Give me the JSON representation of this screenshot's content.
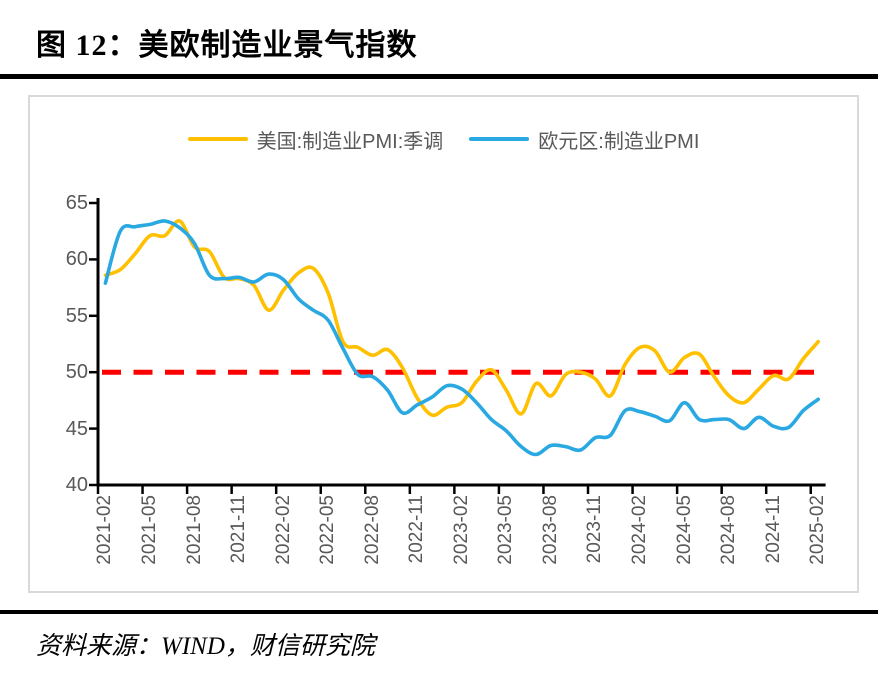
{
  "header": {
    "title": "图 12：美欧制造业景气指数"
  },
  "footer": {
    "source": "资料来源：WIND，财信研究院"
  },
  "colors": {
    "us_line": "#FFC000",
    "eu_line": "#29A8E1",
    "reference": "#FF0000",
    "axis": "#000000",
    "tick_label": "#595959",
    "box_border": "#D9D9D9",
    "rule": "#000000"
  },
  "chart_data": {
    "type": "line",
    "title": "美欧制造业景气指数",
    "xlabel": "",
    "ylabel": "",
    "ylim": [
      40,
      65
    ],
    "yticks": [
      40,
      45,
      50,
      55,
      60,
      65
    ],
    "grid": false,
    "legend_position": "top",
    "smooth_lines": true,
    "x_tick_interval": 3,
    "x": [
      "2021-02",
      "2021-03",
      "2021-04",
      "2021-05",
      "2021-06",
      "2021-07",
      "2021-08",
      "2021-09",
      "2021-10",
      "2021-11",
      "2021-12",
      "2022-01",
      "2022-02",
      "2022-03",
      "2022-04",
      "2022-05",
      "2022-06",
      "2022-07",
      "2022-08",
      "2022-09",
      "2022-10",
      "2022-11",
      "2022-12",
      "2023-01",
      "2023-02",
      "2023-03",
      "2023-04",
      "2023-05",
      "2023-06",
      "2023-07",
      "2023-08",
      "2023-09",
      "2023-10",
      "2023-11",
      "2023-12",
      "2024-01",
      "2024-02",
      "2024-03",
      "2024-04",
      "2024-05",
      "2024-06",
      "2024-07",
      "2024-08",
      "2024-09",
      "2024-10",
      "2024-11",
      "2024-12",
      "2025-01",
      "2025-02"
    ],
    "series": [
      {
        "name": "美国:制造业PMI:季调",
        "color": "#FFC000",
        "values": [
          58.6,
          59.1,
          60.5,
          62.1,
          62.1,
          63.4,
          61.1,
          60.7,
          58.4,
          58.3,
          57.7,
          55.5,
          57.3,
          58.8,
          59.2,
          57.0,
          52.7,
          52.2,
          51.5,
          52.0,
          50.4,
          47.7,
          46.2,
          46.9,
          47.3,
          49.2,
          50.2,
          48.4,
          46.3,
          49.0,
          47.9,
          49.8,
          50.0,
          49.4,
          47.9,
          50.7,
          52.2,
          51.9,
          50.0,
          51.3,
          51.6,
          49.6,
          47.9,
          47.3,
          48.5,
          49.7,
          49.4,
          51.2,
          52.7
        ]
      },
      {
        "name": "欧元区:制造业PMI",
        "color": "#29A8E1",
        "values": [
          57.9,
          62.5,
          62.9,
          63.1,
          63.4,
          62.8,
          61.4,
          58.6,
          58.3,
          58.4,
          58.0,
          58.7,
          58.2,
          56.5,
          55.5,
          54.6,
          52.1,
          49.8,
          49.6,
          48.4,
          46.4,
          47.1,
          47.8,
          48.8,
          48.5,
          47.3,
          45.8,
          44.8,
          43.4,
          42.7,
          43.5,
          43.4,
          43.1,
          44.2,
          44.4,
          46.6,
          46.5,
          46.1,
          45.7,
          47.3,
          45.8,
          45.8,
          45.8,
          45.0,
          46.0,
          45.2,
          45.1,
          46.6,
          47.6
        ]
      }
    ],
    "reference_line": {
      "value": 50,
      "style": "dashed",
      "color": "#FF0000"
    }
  }
}
